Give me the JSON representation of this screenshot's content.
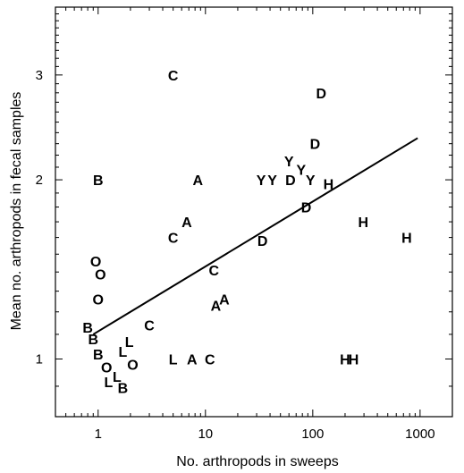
{
  "chart_data": {
    "type": "scatter",
    "title": "",
    "xlabel": "No. arthropods in sweeps",
    "ylabel": "Mean no. arthropods in fecal samples",
    "xscale": "log",
    "yscale": "log",
    "xlim": [
      0.4,
      2000
    ],
    "ylim": [
      0.8,
      3.9
    ],
    "xticks": [
      1,
      10,
      100,
      1000
    ],
    "xtick_labels": [
      "1",
      "10",
      "100",
      "1000"
    ],
    "yticks": [
      1,
      2,
      3
    ],
    "ytick_labels": [
      "1",
      "2",
      "3"
    ],
    "grid": false,
    "fit_line": {
      "x": [
        0.9,
        950
      ],
      "y": [
        1.1,
        2.35
      ]
    },
    "points": [
      {
        "label": "C",
        "x": 5,
        "y": 3.0
      },
      {
        "label": "D",
        "x": 120,
        "y": 2.8
      },
      {
        "label": "D",
        "x": 105,
        "y": 2.3
      },
      {
        "label": "Y",
        "x": 60,
        "y": 2.15
      },
      {
        "label": "Y",
        "x": 78,
        "y": 2.08
      },
      {
        "label": "Y",
        "x": 95,
        "y": 2.0
      },
      {
        "label": "Y",
        "x": 33,
        "y": 2.0
      },
      {
        "label": "Y",
        "x": 42,
        "y": 2.0
      },
      {
        "label": "D",
        "x": 62,
        "y": 2.0
      },
      {
        "label": "H",
        "x": 140,
        "y": 1.97
      },
      {
        "label": "B",
        "x": 1,
        "y": 2.0
      },
      {
        "label": "A",
        "x": 8.5,
        "y": 2.0
      },
      {
        "label": "D",
        "x": 87,
        "y": 1.8
      },
      {
        "label": "H",
        "x": 295,
        "y": 1.7
      },
      {
        "label": "H",
        "x": 750,
        "y": 1.6
      },
      {
        "label": "D",
        "x": 34,
        "y": 1.58
      },
      {
        "label": "A",
        "x": 6.7,
        "y": 1.7
      },
      {
        "label": "C",
        "x": 5,
        "y": 1.6
      },
      {
        "label": "C",
        "x": 12,
        "y": 1.41
      },
      {
        "label": "O",
        "x": 0.95,
        "y": 1.46
      },
      {
        "label": "O",
        "x": 1.05,
        "y": 1.39
      },
      {
        "label": "O",
        "x": 1,
        "y": 1.26
      },
      {
        "label": "A",
        "x": 15,
        "y": 1.26
      },
      {
        "label": "A",
        "x": 12.5,
        "y": 1.23
      },
      {
        "label": "C",
        "x": 3,
        "y": 1.14
      },
      {
        "label": "B",
        "x": 0.8,
        "y": 1.13
      },
      {
        "label": "B",
        "x": 0.9,
        "y": 1.08
      },
      {
        "label": "L",
        "x": 1.95,
        "y": 1.07
      },
      {
        "label": "L",
        "x": 1.7,
        "y": 1.03
      },
      {
        "label": "B",
        "x": 1,
        "y": 1.02
      },
      {
        "label": "L",
        "x": 5,
        "y": 1.0
      },
      {
        "label": "A",
        "x": 7.5,
        "y": 1.0
      },
      {
        "label": "C",
        "x": 11,
        "y": 1.0
      },
      {
        "label": "H",
        "x": 200,
        "y": 1.0
      },
      {
        "label": "H",
        "x": 240,
        "y": 1.0
      },
      {
        "label": "O",
        "x": 2.1,
        "y": 0.98
      },
      {
        "label": "O",
        "x": 1.2,
        "y": 0.97
      },
      {
        "label": "L",
        "x": 1.5,
        "y": 0.935
      },
      {
        "label": "L",
        "x": 1.25,
        "y": 0.915
      },
      {
        "label": "B",
        "x": 1.7,
        "y": 0.895
      }
    ]
  }
}
